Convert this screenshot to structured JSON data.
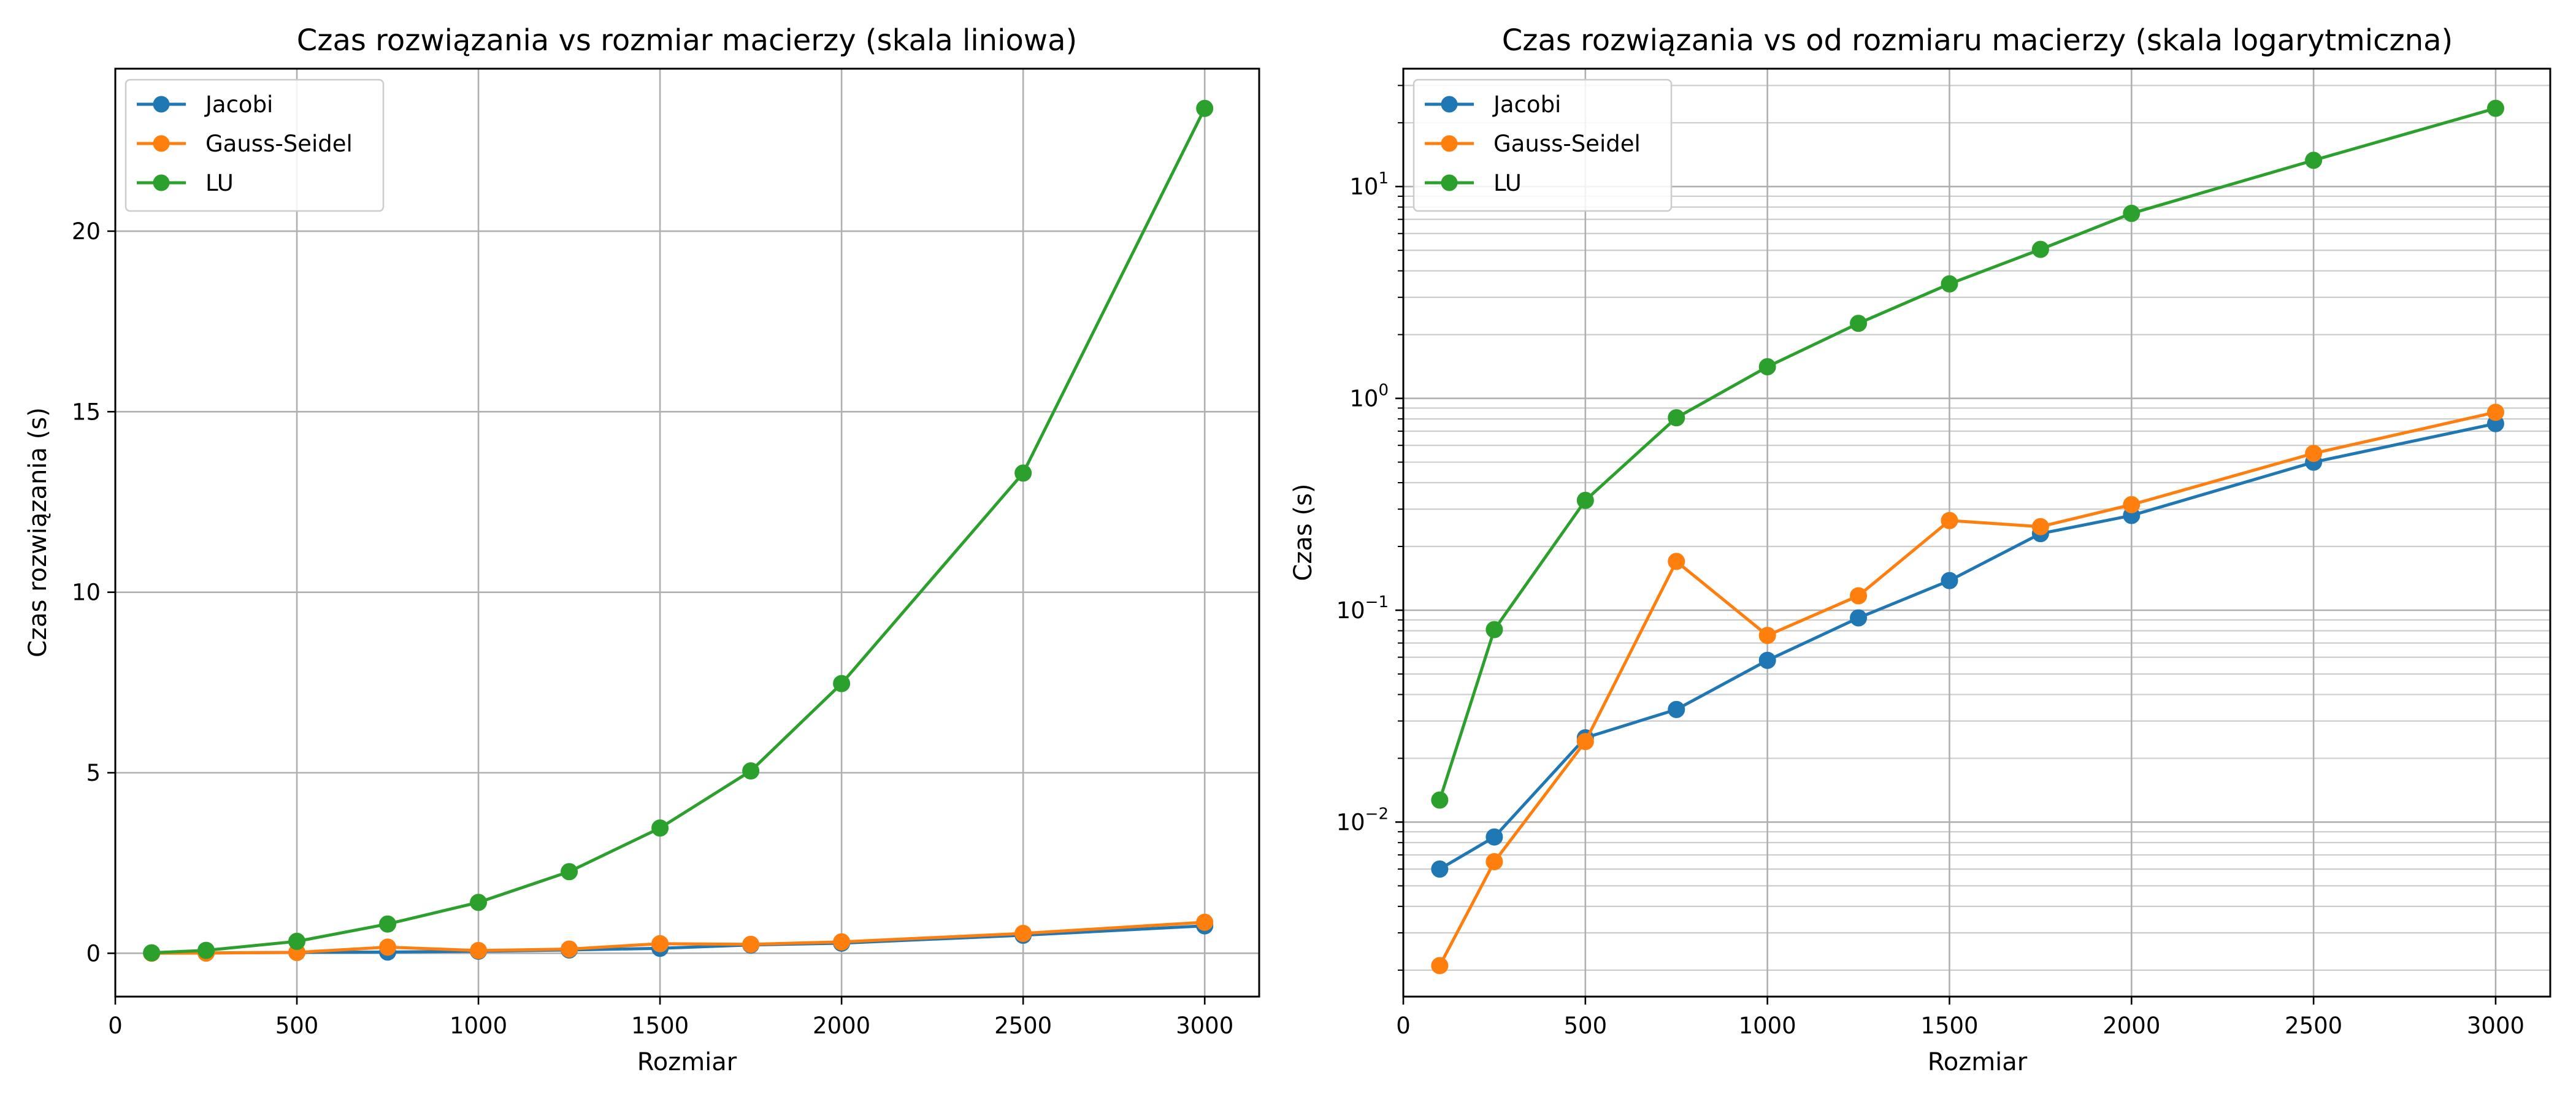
{
  "chart_data": [
    {
      "type": "line",
      "title": "Czas rozwiązania vs rozmiar macierzy (skala liniowa)",
      "xlabel": "Rozmiar",
      "ylabel": "Czas rozwiązania (s)",
      "yscale": "linear",
      "xlim": [
        0,
        3150
      ],
      "ylim": [
        -1.2,
        24.5
      ],
      "xticks": [
        0,
        500,
        1000,
        1500,
        2000,
        2500,
        3000
      ],
      "yticks": [
        0,
        5,
        10,
        15,
        20
      ],
      "grid": true,
      "legend_position": "top-left",
      "x": [
        100,
        250,
        500,
        750,
        1000,
        1250,
        1500,
        1750,
        2000,
        2500,
        3000
      ],
      "series": [
        {
          "name": "Jacobi",
          "color": "#1f77b4",
          "values": [
            0.006,
            0.0085,
            0.025,
            0.034,
            0.058,
            0.092,
            0.138,
            0.23,
            0.28,
            0.5,
            0.76
          ]
        },
        {
          "name": "Gauss-Seidel",
          "color": "#ff7f0e",
          "values": [
            0.0021,
            0.0065,
            0.024,
            0.17,
            0.076,
            0.117,
            0.265,
            0.248,
            0.315,
            0.55,
            0.86
          ]
        },
        {
          "name": "LU",
          "color": "#2ca02c",
          "values": [
            0.0127,
            0.081,
            0.33,
            0.81,
            1.41,
            2.26,
            3.47,
            5.05,
            7.47,
            13.3,
            23.4
          ]
        }
      ]
    },
    {
      "type": "line",
      "title": "Czas rozwiązania vs od rozmiaru macierzy (skala logarytmiczna)",
      "xlabel": "Rozmiar",
      "ylabel": "Czas (s)",
      "yscale": "log",
      "xlim": [
        0,
        3150
      ],
      "ylim": [
        0.0015,
        36
      ],
      "xticks": [
        0,
        500,
        1000,
        1500,
        2000,
        2500,
        3000
      ],
      "yticks": [
        0.01,
        0.1,
        1,
        10
      ],
      "ytick_labels": [
        {
          "base": "10",
          "exp": "−2"
        },
        {
          "base": "10",
          "exp": "−1"
        },
        {
          "base": "10",
          "exp": "0"
        },
        {
          "base": "10",
          "exp": "1"
        }
      ],
      "grid": true,
      "minor_grid": true,
      "legend_position": "top-left",
      "x": [
        100,
        250,
        500,
        750,
        1000,
        1250,
        1500,
        1750,
        2000,
        2500,
        3000
      ],
      "series": [
        {
          "name": "Jacobi",
          "color": "#1f77b4",
          "values": [
            0.006,
            0.0085,
            0.025,
            0.034,
            0.058,
            0.092,
            0.138,
            0.23,
            0.28,
            0.5,
            0.76
          ]
        },
        {
          "name": "Gauss-Seidel",
          "color": "#ff7f0e",
          "values": [
            0.0021,
            0.0065,
            0.024,
            0.17,
            0.076,
            0.117,
            0.265,
            0.248,
            0.315,
            0.55,
            0.86
          ]
        },
        {
          "name": "LU",
          "color": "#2ca02c",
          "values": [
            0.0127,
            0.081,
            0.33,
            0.81,
            1.41,
            2.26,
            3.47,
            5.05,
            7.47,
            13.3,
            23.4
          ]
        }
      ]
    }
  ]
}
